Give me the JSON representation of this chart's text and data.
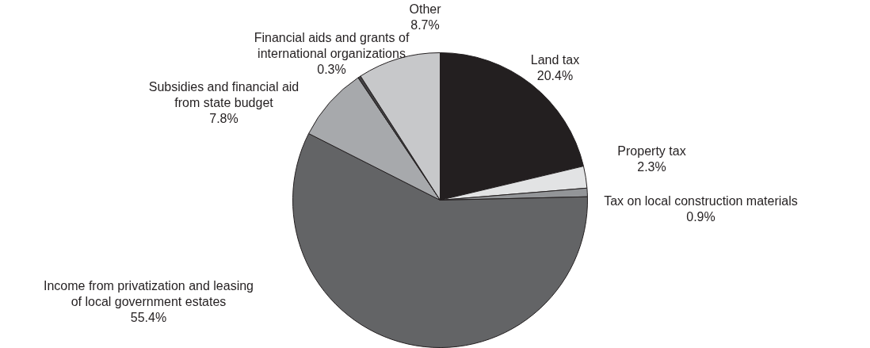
{
  "chart_data": {
    "type": "pie",
    "categories": [
      "Land tax",
      "Property tax",
      "Tax on local construction materials",
      "Income from privatization and leasing of local government estates",
      "Subsidies and financial aid from state budget",
      "Financial aids and grants of international organizations",
      "Other"
    ],
    "values": [
      20.4,
      2.3,
      0.9,
      55.4,
      7.8,
      0.3,
      8.7
    ],
    "value_labels": [
      "20.4%",
      "2.3%",
      "0.9%",
      "55.4%",
      "7.8%",
      "0.3%",
      "8.7%"
    ],
    "colors": [
      "#231f20",
      "#e2e3e4",
      "#939598",
      "#636466",
      "#a7a9ac",
      "#414042",
      "#c7c8ca"
    ]
  }
}
